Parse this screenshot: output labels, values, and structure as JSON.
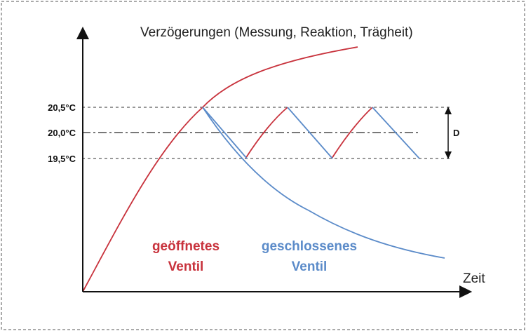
{
  "title": "Verzögerungen (Messung, Reaktion, Trägheit)",
  "x_axis_label": "Zeit",
  "y_ticks": [
    "20,5°C",
    "20,0°C",
    "19,5°C"
  ],
  "band_label": "D",
  "labels": {
    "open_valve": [
      "geöffnetes",
      "Ventil"
    ],
    "closed_valve": [
      "geschlossenes",
      "Ventil"
    ]
  },
  "colors": {
    "heating": "#c8323c",
    "cooling": "#5b8bc9",
    "axis": "#111111",
    "guide": "#777777",
    "frame": "#555555"
  }
}
